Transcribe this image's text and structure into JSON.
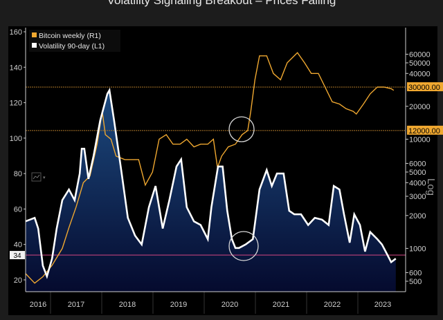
{
  "chart_data": {
    "type": "line",
    "title": "Volatility Signaling Breakout – Prices Falling",
    "legend": [
      "Bitcoin weekly (R1)",
      "Volatility 90-day (L1)"
    ],
    "legend_placement": "top-left",
    "x_ticks": [
      "2016",
      "2017",
      "2018",
      "2019",
      "2020",
      "2021",
      "2022",
      "2023"
    ],
    "left_axis": {
      "ylim": [
        15,
        160
      ],
      "ticks": [
        20,
        40,
        60,
        80,
        100,
        120,
        140,
        160
      ],
      "current_label": "34"
    },
    "right_axis": {
      "scale": "log",
      "label": "Log",
      "ylim": [
        450,
        75000
      ],
      "ticks": [
        500,
        600,
        1000,
        2000,
        3000,
        4000,
        5000,
        6000,
        10000,
        20000,
        40000,
        50000,
        60000
      ],
      "markers": [
        "30000.00",
        "12000.00"
      ]
    },
    "reference_lines": {
      "volatility": 34,
      "price_high": 30000,
      "price_low": 12000
    },
    "series": [
      {
        "name": "Volatility 90-day (L1)",
        "axis": "left",
        "color": "#ffffff",
        "points": [
          [
            2016.51,
            53
          ],
          [
            2016.69,
            55
          ],
          [
            2016.76,
            49
          ],
          [
            2016.85,
            28
          ],
          [
            2016.93,
            22
          ],
          [
            2017.03,
            32
          ],
          [
            2017.12,
            49
          ],
          [
            2017.23,
            65
          ],
          [
            2017.36,
            71
          ],
          [
            2017.47,
            65
          ],
          [
            2017.57,
            80
          ],
          [
            2017.61,
            94
          ],
          [
            2017.66,
            94
          ],
          [
            2017.74,
            77
          ],
          [
            2017.84,
            90
          ],
          [
            2017.97,
            110
          ],
          [
            2018.11,
            125
          ],
          [
            2018.15,
            127
          ],
          [
            2018.24,
            110
          ],
          [
            2018.38,
            82
          ],
          [
            2018.51,
            55
          ],
          [
            2018.65,
            45
          ],
          [
            2018.78,
            40
          ],
          [
            2018.92,
            61
          ],
          [
            2019.05,
            73
          ],
          [
            2019.19,
            49
          ],
          [
            2019.32,
            65
          ],
          [
            2019.46,
            84
          ],
          [
            2019.55,
            88
          ],
          [
            2019.66,
            61
          ],
          [
            2019.8,
            53
          ],
          [
            2019.93,
            51
          ],
          [
            2020.07,
            43
          ],
          [
            2020.14,
            61
          ],
          [
            2020.27,
            84
          ],
          [
            2020.36,
            84
          ],
          [
            2020.45,
            59
          ],
          [
            2020.54,
            43
          ],
          [
            2020.61,
            38
          ],
          [
            2020.68,
            38
          ],
          [
            2020.81,
            40
          ],
          [
            2020.95,
            43
          ],
          [
            2021.08,
            71
          ],
          [
            2021.22,
            82
          ],
          [
            2021.32,
            73
          ],
          [
            2021.42,
            80
          ],
          [
            2021.55,
            80
          ],
          [
            2021.66,
            59
          ],
          [
            2021.76,
            57
          ],
          [
            2021.89,
            57
          ],
          [
            2022.03,
            51
          ],
          [
            2022.16,
            55
          ],
          [
            2022.3,
            54
          ],
          [
            2022.43,
            51
          ],
          [
            2022.53,
            73
          ],
          [
            2022.64,
            71
          ],
          [
            2022.73,
            57
          ],
          [
            2022.84,
            41
          ],
          [
            2022.93,
            57
          ],
          [
            2023.04,
            51
          ],
          [
            2023.14,
            36
          ],
          [
            2023.24,
            47
          ],
          [
            2023.38,
            43
          ],
          [
            2023.47,
            40
          ],
          [
            2023.58,
            34
          ],
          [
            2023.65,
            30
          ],
          [
            2023.74,
            32
          ]
        ]
      },
      {
        "name": "Bitcoin weekly (R1)",
        "axis": "right",
        "color": "#f0a830",
        "points": [
          [
            2016.51,
            590
          ],
          [
            2016.69,
            480
          ],
          [
            2016.85,
            550
          ],
          [
            2017.03,
            700
          ],
          [
            2017.23,
            1000
          ],
          [
            2017.36,
            1550
          ],
          [
            2017.5,
            2400
          ],
          [
            2017.64,
            4000
          ],
          [
            2017.77,
            4600
          ],
          [
            2017.91,
            9000
          ],
          [
            2018.01,
            18000
          ],
          [
            2018.07,
            11000
          ],
          [
            2018.18,
            10000
          ],
          [
            2018.28,
            7000
          ],
          [
            2018.45,
            6500
          ],
          [
            2018.72,
            6500
          ],
          [
            2018.85,
            3800
          ],
          [
            2018.99,
            5000
          ],
          [
            2019.12,
            10000
          ],
          [
            2019.26,
            11000
          ],
          [
            2019.39,
            9000
          ],
          [
            2019.53,
            9000
          ],
          [
            2019.66,
            10000
          ],
          [
            2019.8,
            8500
          ],
          [
            2019.93,
            9000
          ],
          [
            2020.07,
            9000
          ],
          [
            2020.18,
            10000
          ],
          [
            2020.26,
            5500
          ],
          [
            2020.34,
            7000
          ],
          [
            2020.47,
            8500
          ],
          [
            2020.61,
            9000
          ],
          [
            2020.74,
            11000
          ],
          [
            2020.85,
            12000
          ],
          [
            2020.91,
            18000
          ],
          [
            2020.99,
            35000
          ],
          [
            2021.08,
            58000
          ],
          [
            2021.22,
            58000
          ],
          [
            2021.35,
            40000
          ],
          [
            2021.49,
            35000
          ],
          [
            2021.62,
            50000
          ],
          [
            2021.82,
            62000
          ],
          [
            2021.96,
            50000
          ],
          [
            2022.09,
            40000
          ],
          [
            2022.23,
            40000
          ],
          [
            2022.36,
            30000
          ],
          [
            2022.5,
            22000
          ],
          [
            2022.64,
            21000
          ],
          [
            2022.77,
            19000
          ],
          [
            2022.91,
            18000
          ],
          [
            2022.97,
            17000
          ],
          [
            2023.11,
            21000
          ],
          [
            2023.24,
            26000
          ],
          [
            2023.38,
            30000
          ],
          [
            2023.51,
            30000
          ],
          [
            2023.65,
            29000
          ],
          [
            2023.7,
            28000
          ]
        ]
      }
    ],
    "annotations": [
      "circle near 2020.6 price ~10000",
      "circle near 2020.6 volatility ~38"
    ]
  }
}
